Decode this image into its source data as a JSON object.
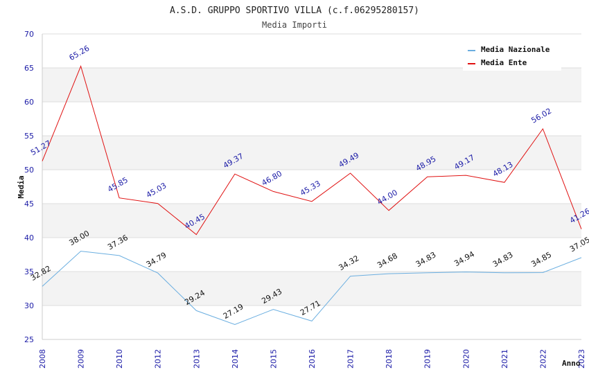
{
  "chart_data": {
    "type": "line",
    "title": "A.S.D. GRUPPO SPORTIVO VILLA (c.f.06295280157)",
    "subtitle": "Media Importi",
    "xlabel": "Anno",
    "ylabel": "Media",
    "ylim": [
      25,
      70
    ],
    "yticks": [
      25,
      30,
      35,
      40,
      45,
      50,
      55,
      60,
      65,
      70
    ],
    "categories": [
      "2008",
      "2009",
      "2010",
      "2012",
      "2013",
      "2014",
      "2015",
      "2016",
      "2017",
      "2018",
      "2019",
      "2020",
      "2021",
      "2022",
      "2023"
    ],
    "legend_position": "top-right",
    "series": [
      {
        "name": "Media Nazionale",
        "color": "#6aaee0",
        "values": [
          32.82,
          38.0,
          37.36,
          34.79,
          29.24,
          27.19,
          29.43,
          27.71,
          34.32,
          34.68,
          34.83,
          34.94,
          34.83,
          34.85,
          37.05
        ],
        "labels": [
          "32.82",
          "38.00",
          "37.36",
          "34.79",
          "29.24",
          "27.19",
          "29.43",
          "27.71",
          "34.32",
          "34.68",
          "34.83",
          "34.94",
          "34.83",
          "34.85",
          "37.05"
        ]
      },
      {
        "name": "Media Ente",
        "color": "#e01010",
        "values": [
          51.27,
          65.26,
          45.85,
          45.03,
          40.45,
          49.37,
          46.8,
          45.33,
          49.49,
          44.0,
          48.95,
          49.17,
          48.13,
          56.02,
          41.26
        ],
        "labels": [
          "51.27",
          "65.26",
          "45.85",
          "45.03",
          "40.45",
          "49.37",
          "46.80",
          "45.33",
          "49.49",
          "44.00",
          "48.95",
          "49.17",
          "48.13",
          "56.02",
          "41.26"
        ]
      }
    ],
    "grid": true
  }
}
